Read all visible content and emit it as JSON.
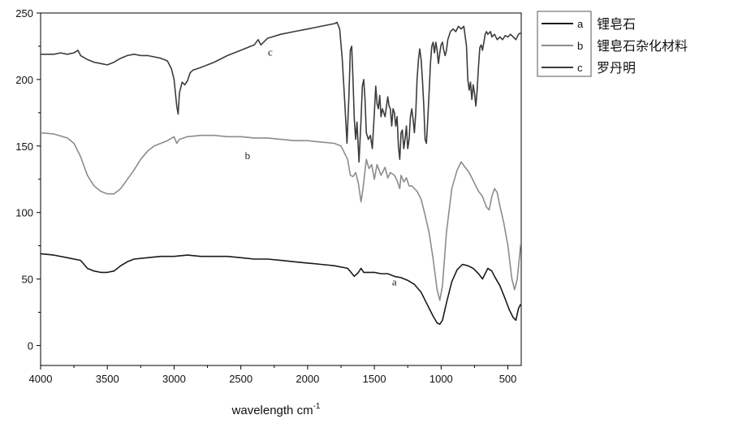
{
  "chart_data": {
    "type": "line",
    "xlabel": "wavelength  cm",
    "xlabel_superscript": "-1",
    "xlim": [
      4000,
      400
    ],
    "ylim": [
      -15,
      250
    ],
    "x_reversed": true,
    "xticks": [
      4000,
      3500,
      3000,
      2500,
      2000,
      1500,
      1000,
      500
    ],
    "yticks": [
      0,
      50,
      100,
      150,
      200,
      250
    ],
    "grid": false,
    "legend_position": "outside-right-top",
    "series": [
      {
        "key": "a",
        "name": "锂皂石",
        "color": "#1a1a1a",
        "points": [
          [
            4000,
            69
          ],
          [
            3900,
            68
          ],
          [
            3800,
            66
          ],
          [
            3700,
            64
          ],
          [
            3650,
            58
          ],
          [
            3600,
            56
          ],
          [
            3550,
            55
          ],
          [
            3500,
            55
          ],
          [
            3450,
            56
          ],
          [
            3400,
            60
          ],
          [
            3350,
            63
          ],
          [
            3300,
            65
          ],
          [
            3200,
            66
          ],
          [
            3100,
            67
          ],
          [
            3000,
            67
          ],
          [
            2900,
            68
          ],
          [
            2800,
            67
          ],
          [
            2700,
            67
          ],
          [
            2600,
            67
          ],
          [
            2500,
            66
          ],
          [
            2400,
            65
          ],
          [
            2300,
            65
          ],
          [
            2200,
            64
          ],
          [
            2100,
            63
          ],
          [
            2000,
            62
          ],
          [
            1900,
            61
          ],
          [
            1800,
            60
          ],
          [
            1700,
            58
          ],
          [
            1650,
            52
          ],
          [
            1620,
            55
          ],
          [
            1600,
            58
          ],
          [
            1580,
            55
          ],
          [
            1500,
            55
          ],
          [
            1450,
            54
          ],
          [
            1400,
            54
          ],
          [
            1350,
            52
          ],
          [
            1300,
            51
          ],
          [
            1250,
            49
          ],
          [
            1200,
            46
          ],
          [
            1150,
            40
          ],
          [
            1100,
            30
          ],
          [
            1060,
            22
          ],
          [
            1030,
            17
          ],
          [
            1010,
            16
          ],
          [
            990,
            19
          ],
          [
            960,
            32
          ],
          [
            920,
            48
          ],
          [
            880,
            57
          ],
          [
            840,
            61
          ],
          [
            800,
            60
          ],
          [
            760,
            58
          ],
          [
            720,
            54
          ],
          [
            690,
            50
          ],
          [
            650,
            58
          ],
          [
            620,
            56
          ],
          [
            600,
            52
          ],
          [
            560,
            45
          ],
          [
            520,
            35
          ],
          [
            490,
            27
          ],
          [
            460,
            21
          ],
          [
            440,
            19
          ],
          [
            420,
            28
          ],
          [
            405,
            31
          ]
        ]
      },
      {
        "key": "b",
        "name": "锂皂石杂化材料",
        "color": "#8c8c8c",
        "points": [
          [
            4000,
            160
          ],
          [
            3900,
            159
          ],
          [
            3800,
            156
          ],
          [
            3750,
            152
          ],
          [
            3700,
            142
          ],
          [
            3650,
            128
          ],
          [
            3600,
            120
          ],
          [
            3550,
            116
          ],
          [
            3500,
            114
          ],
          [
            3450,
            114
          ],
          [
            3400,
            118
          ],
          [
            3350,
            125
          ],
          [
            3300,
            132
          ],
          [
            3250,
            140
          ],
          [
            3200,
            146
          ],
          [
            3150,
            150
          ],
          [
            3100,
            152
          ],
          [
            3050,
            154
          ],
          [
            3000,
            157
          ],
          [
            2980,
            152
          ],
          [
            2960,
            155
          ],
          [
            2900,
            157
          ],
          [
            2800,
            158
          ],
          [
            2700,
            158
          ],
          [
            2600,
            157
          ],
          [
            2500,
            157
          ],
          [
            2400,
            156
          ],
          [
            2300,
            156
          ],
          [
            2200,
            155
          ],
          [
            2100,
            154
          ],
          [
            2000,
            154
          ],
          [
            1900,
            153
          ],
          [
            1800,
            152
          ],
          [
            1750,
            150
          ],
          [
            1700,
            140
          ],
          [
            1680,
            128
          ],
          [
            1660,
            127
          ],
          [
            1640,
            130
          ],
          [
            1620,
            122
          ],
          [
            1600,
            108
          ],
          [
            1585,
            118
          ],
          [
            1560,
            140
          ],
          [
            1540,
            133
          ],
          [
            1520,
            136
          ],
          [
            1500,
            125
          ],
          [
            1480,
            136
          ],
          [
            1450,
            128
          ],
          [
            1420,
            134
          ],
          [
            1400,
            126
          ],
          [
            1380,
            130
          ],
          [
            1350,
            128
          ],
          [
            1330,
            124
          ],
          [
            1310,
            118
          ],
          [
            1300,
            128
          ],
          [
            1280,
            123
          ],
          [
            1260,
            126
          ],
          [
            1240,
            120
          ],
          [
            1220,
            120
          ],
          [
            1200,
            118
          ],
          [
            1180,
            116
          ],
          [
            1150,
            110
          ],
          [
            1120,
            98
          ],
          [
            1090,
            85
          ],
          [
            1060,
            65
          ],
          [
            1030,
            42
          ],
          [
            1010,
            34
          ],
          [
            990,
            45
          ],
          [
            960,
            85
          ],
          [
            920,
            118
          ],
          [
            880,
            132
          ],
          [
            850,
            138
          ],
          [
            820,
            134
          ],
          [
            790,
            130
          ],
          [
            760,
            124
          ],
          [
            720,
            116
          ],
          [
            690,
            112
          ],
          [
            660,
            104
          ],
          [
            640,
            102
          ],
          [
            620,
            112
          ],
          [
            600,
            118
          ],
          [
            580,
            115
          ],
          [
            560,
            105
          ],
          [
            530,
            92
          ],
          [
            500,
            75
          ],
          [
            470,
            50
          ],
          [
            450,
            42
          ],
          [
            430,
            50
          ],
          [
            410,
            70
          ],
          [
            405,
            76
          ]
        ]
      },
      {
        "key": "c",
        "name": "罗丹明",
        "color": "#3c3c3c",
        "points": [
          [
            4000,
            219
          ],
          [
            3900,
            219
          ],
          [
            3850,
            220
          ],
          [
            3800,
            219
          ],
          [
            3750,
            220
          ],
          [
            3720,
            222
          ],
          [
            3700,
            218
          ],
          [
            3650,
            215
          ],
          [
            3600,
            213
          ],
          [
            3550,
            212
          ],
          [
            3500,
            211
          ],
          [
            3450,
            213
          ],
          [
            3400,
            216
          ],
          [
            3350,
            218
          ],
          [
            3300,
            219
          ],
          [
            3250,
            218
          ],
          [
            3200,
            218
          ],
          [
            3150,
            217
          ],
          [
            3100,
            216
          ],
          [
            3050,
            214
          ],
          [
            3020,
            208
          ],
          [
            3000,
            200
          ],
          [
            2980,
            180
          ],
          [
            2970,
            174
          ],
          [
            2960,
            190
          ],
          [
            2940,
            198
          ],
          [
            2920,
            196
          ],
          [
            2900,
            199
          ],
          [
            2880,
            205
          ],
          [
            2860,
            207
          ],
          [
            2800,
            209
          ],
          [
            2700,
            213
          ],
          [
            2600,
            218
          ],
          [
            2500,
            222
          ],
          [
            2400,
            226
          ],
          [
            2370,
            230
          ],
          [
            2350,
            226
          ],
          [
            2300,
            231
          ],
          [
            2200,
            234
          ],
          [
            2100,
            236
          ],
          [
            2000,
            238
          ],
          [
            1900,
            240
          ],
          [
            1800,
            242
          ],
          [
            1780,
            243
          ],
          [
            1760,
            238
          ],
          [
            1740,
            215
          ],
          [
            1720,
            180
          ],
          [
            1705,
            152
          ],
          [
            1690,
            190
          ],
          [
            1680,
            222
          ],
          [
            1670,
            225
          ],
          [
            1660,
            200
          ],
          [
            1650,
            170
          ],
          [
            1640,
            155
          ],
          [
            1630,
            168
          ],
          [
            1615,
            138
          ],
          [
            1600,
            170
          ],
          [
            1590,
            195
          ],
          [
            1580,
            200
          ],
          [
            1570,
            185
          ],
          [
            1560,
            160
          ],
          [
            1545,
            155
          ],
          [
            1530,
            158
          ],
          [
            1515,
            148
          ],
          [
            1500,
            175
          ],
          [
            1490,
            195
          ],
          [
            1480,
            182
          ],
          [
            1470,
            178
          ],
          [
            1460,
            188
          ],
          [
            1450,
            172
          ],
          [
            1440,
            178
          ],
          [
            1420,
            172
          ],
          [
            1400,
            187
          ],
          [
            1390,
            180
          ],
          [
            1380,
            178
          ],
          [
            1370,
            165
          ],
          [
            1360,
            178
          ],
          [
            1350,
            175
          ],
          [
            1340,
            165
          ],
          [
            1330,
            172
          ],
          [
            1320,
            150
          ],
          [
            1310,
            140
          ],
          [
            1300,
            160
          ],
          [
            1290,
            162
          ],
          [
            1280,
            148
          ],
          [
            1270,
            155
          ],
          [
            1260,
            165
          ],
          [
            1250,
            148
          ],
          [
            1240,
            155
          ],
          [
            1230,
            172
          ],
          [
            1220,
            178
          ],
          [
            1210,
            170
          ],
          [
            1200,
            160
          ],
          [
            1190,
            175
          ],
          [
            1180,
            200
          ],
          [
            1170,
            215
          ],
          [
            1160,
            223
          ],
          [
            1150,
            215
          ],
          [
            1140,
            200
          ],
          [
            1130,
            180
          ],
          [
            1120,
            155
          ],
          [
            1110,
            152
          ],
          [
            1100,
            170
          ],
          [
            1090,
            190
          ],
          [
            1080,
            212
          ],
          [
            1070,
            225
          ],
          [
            1060,
            228
          ],
          [
            1050,
            220
          ],
          [
            1040,
            228
          ],
          [
            1030,
            222
          ],
          [
            1020,
            212
          ],
          [
            1010,
            220
          ],
          [
            1000,
            226
          ],
          [
            990,
            228
          ],
          [
            980,
            222
          ],
          [
            970,
            218
          ],
          [
            960,
            222
          ],
          [
            950,
            230
          ],
          [
            930,
            236
          ],
          [
            910,
            238
          ],
          [
            890,
            236
          ],
          [
            870,
            240
          ],
          [
            850,
            238
          ],
          [
            830,
            240
          ],
          [
            810,
            225
          ],
          [
            800,
            200
          ],
          [
            790,
            192
          ],
          [
            780,
            198
          ],
          [
            770,
            185
          ],
          [
            760,
            196
          ],
          [
            750,
            190
          ],
          [
            740,
            180
          ],
          [
            730,
            192
          ],
          [
            720,
            210
          ],
          [
            710,
            224
          ],
          [
            700,
            226
          ],
          [
            690,
            222
          ],
          [
            680,
            228
          ],
          [
            670,
            234
          ],
          [
            660,
            236
          ],
          [
            650,
            234
          ],
          [
            630,
            236
          ],
          [
            620,
            232
          ],
          [
            600,
            234
          ],
          [
            580,
            230
          ],
          [
            560,
            232
          ],
          [
            540,
            230
          ],
          [
            520,
            233
          ],
          [
            500,
            232
          ],
          [
            480,
            234
          ],
          [
            460,
            232
          ],
          [
            440,
            230
          ],
          [
            420,
            234
          ],
          [
            405,
            235
          ]
        ]
      }
    ],
    "annotations": [
      {
        "text": "a",
        "x": 1350,
        "y": 45
      },
      {
        "text": "b",
        "x": 2450,
        "y": 140
      },
      {
        "text": "c",
        "x": 2280,
        "y": 218
      }
    ]
  }
}
